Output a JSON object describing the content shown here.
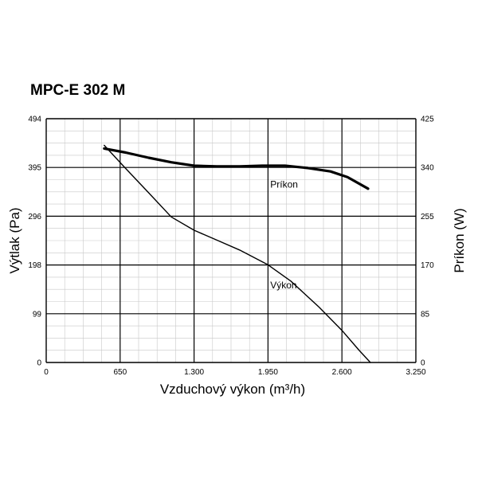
{
  "chart_data": {
    "type": "line",
    "title": "MPC-E 302 M",
    "xlabel": "Vzduchový výkon (m³/h)",
    "ylabel_left": "Výtlak (Pa)",
    "ylabel_right": "Príkon (W)",
    "x_ticks": [
      "0",
      "650",
      "1.300",
      "1.950",
      "2.600",
      "3.250"
    ],
    "y_left_ticks": [
      "0",
      "99",
      "198",
      "296",
      "395",
      "494"
    ],
    "y_right_ticks": [
      "0",
      "85",
      "170",
      "255",
      "340",
      "425"
    ],
    "xlim": [
      0,
      3250
    ],
    "ylim_left": [
      0,
      494
    ],
    "ylim_right": [
      0,
      425
    ],
    "grid": true,
    "colors": {
      "line": "#000000",
      "grid": "#000000",
      "minor_grid": "#c8c8c8"
    },
    "series": [
      {
        "name": "Výkon",
        "axis": "left",
        "x": [
          510,
          700,
          900,
          1100,
          1300,
          1500,
          1700,
          1950,
          2150,
          2400,
          2600,
          2750,
          2850
        ],
        "y": [
          440,
          393,
          344,
          295,
          268,
          248,
          228,
          198,
          165,
          112,
          65,
          25,
          0
        ]
      },
      {
        "name": "Príkon",
        "axis": "right",
        "x": [
          510,
          700,
          900,
          1100,
          1300,
          1500,
          1700,
          1900,
          2100,
          2300,
          2500,
          2650,
          2830
        ],
        "y": [
          373,
          366,
          357,
          349,
          343,
          342,
          342,
          343,
          343,
          339,
          333,
          323,
          303
        ]
      }
    ]
  }
}
